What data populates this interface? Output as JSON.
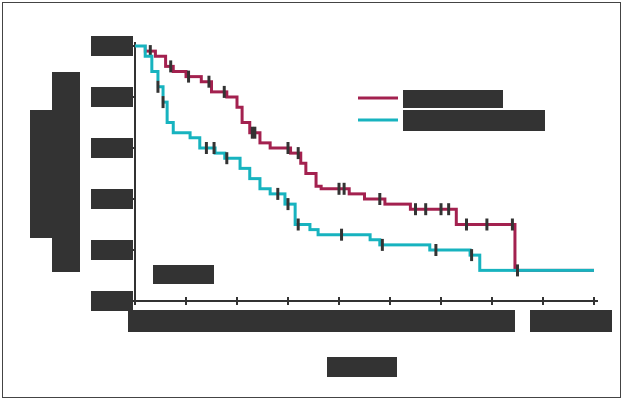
{
  "chart_data": {
    "type": "step",
    "xlim": [
      0,
      9
    ],
    "ylim": [
      0,
      1
    ],
    "xticks": [
      0,
      1,
      2,
      3,
      4,
      5,
      6,
      7,
      8,
      9
    ],
    "yticks": [
      0,
      0.2,
      0.4,
      0.6,
      0.8,
      1
    ],
    "series": [
      {
        "color": "#a3214f",
        "x": [
          0,
          0.2,
          0.4,
          0.6,
          0.75,
          1,
          1.3,
          1.5,
          1.8,
          2,
          2.1,
          2.25,
          2.45,
          2.65,
          3.05,
          3.25,
          3.35,
          3.55,
          3.65,
          4.2,
          4.5,
          4.9,
          5.4,
          6.3,
          7.45
        ],
        "values": [
          1,
          0.98,
          0.96,
          0.92,
          0.9,
          0.88,
          0.86,
          0.82,
          0.8,
          0.76,
          0.7,
          0.66,
          0.62,
          0.6,
          0.58,
          0.54,
          0.5,
          0.45,
          0.44,
          0.42,
          0.4,
          0.38,
          0.36,
          0.3,
          0.12
        ],
        "censor_x": [
          0.3,
          0.7,
          1.05,
          1.45,
          1.75,
          2.3,
          2.35,
          3.0,
          3.2,
          4.0,
          4.1,
          4.8,
          5.5,
          5.7,
          6.0,
          6.15,
          6.5,
          6.9,
          7.4
        ]
      },
      {
        "color": "#17b3bf",
        "x": [
          0,
          0.2,
          0.33,
          0.45,
          0.55,
          0.63,
          0.75,
          1.08,
          1.27,
          1.57,
          1.76,
          2.06,
          2.25,
          2.45,
          2.65,
          2.94,
          3.14,
          3.43,
          3.59,
          4.61,
          4.8,
          5.78,
          6.57,
          6.76
        ],
        "values": [
          1,
          0.96,
          0.9,
          0.84,
          0.78,
          0.7,
          0.66,
          0.64,
          0.6,
          0.58,
          0.56,
          0.52,
          0.48,
          0.44,
          0.42,
          0.38,
          0.3,
          0.28,
          0.26,
          0.24,
          0.22,
          0.2,
          0.18,
          0.12
        ],
        "censor_x": [
          0.45,
          0.55,
          1.4,
          1.55,
          1.8,
          2.8,
          3.0,
          3.2,
          4.05,
          4.85,
          5.9,
          6.6,
          7.5
        ]
      }
    ]
  }
}
